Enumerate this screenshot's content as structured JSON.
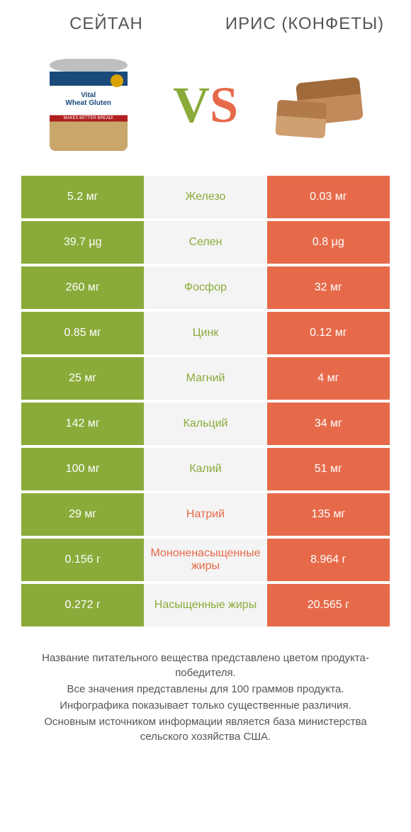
{
  "colors": {
    "green": "#8aab3a",
    "orange": "#e66a4a",
    "mid_bg": "#f4f4f4"
  },
  "products": {
    "left": {
      "title": "СЕЙТАН"
    },
    "right": {
      "title": "ИРИС (КОНФЕТЫ)"
    }
  },
  "vs": {
    "v": "V",
    "s": "S"
  },
  "rows": [
    {
      "left": "5.2 мг",
      "label": "Железо",
      "right": "0.03 мг",
      "winner": "left"
    },
    {
      "left": "39.7 µg",
      "label": "Селен",
      "right": "0.8 µg",
      "winner": "left"
    },
    {
      "left": "260 мг",
      "label": "Фосфор",
      "right": "32 мг",
      "winner": "left"
    },
    {
      "left": "0.85 мг",
      "label": "Цинк",
      "right": "0.12 мг",
      "winner": "left"
    },
    {
      "left": "25 мг",
      "label": "Магний",
      "right": "4 мг",
      "winner": "left"
    },
    {
      "left": "142 мг",
      "label": "Кальций",
      "right": "34 мг",
      "winner": "left"
    },
    {
      "left": "100 мг",
      "label": "Калий",
      "right": "51 мг",
      "winner": "left"
    },
    {
      "left": "29 мг",
      "label": "Натрий",
      "right": "135 мг",
      "winner": "right"
    },
    {
      "left": "0.156 г",
      "label": "Мононенасыщенные жиры",
      "right": "8.964 г",
      "winner": "right"
    },
    {
      "left": "0.272 г",
      "label": "Насыщенные жиры",
      "right": "20.565 г",
      "winner": "left"
    }
  ],
  "footer": [
    "Название питательного вещества представлено цветом продукта-победителя.",
    "Все значения представлены для 100 граммов продукта.",
    "Инфографика показывает только существенные различия.",
    "Основным источником информации является база министерства сельского хозяйства США."
  ],
  "can": {
    "line1": "Vital",
    "line2": "Wheat Gluten",
    "band": "MAKES BETTER BREAD!"
  }
}
